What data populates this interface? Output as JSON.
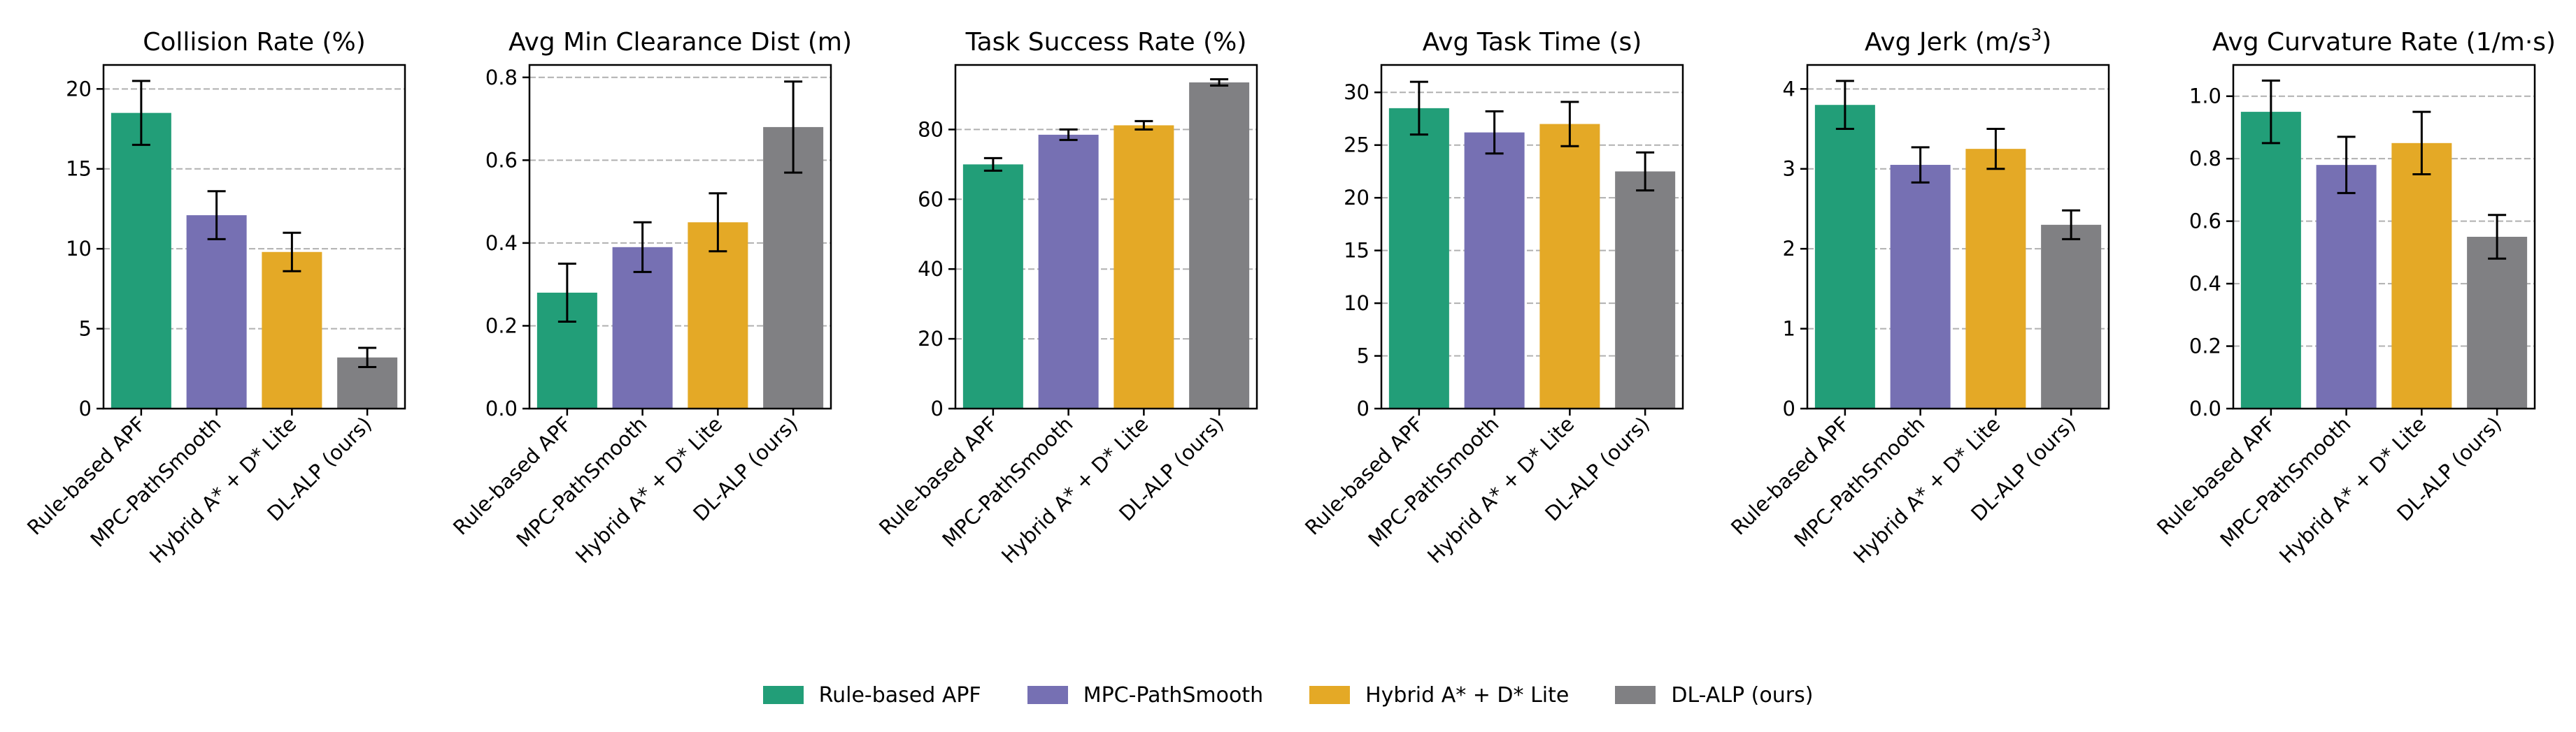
{
  "chart_data": [
    {
      "type": "bar",
      "title": "Collision Rate (%)",
      "categories": [
        "Rule-based APF",
        "MPC-PathSmooth",
        "Hybrid A* + D* Lite",
        "DL-ALP (ours)"
      ],
      "values": [
        18.5,
        12.1,
        9.8,
        3.2
      ],
      "errors": [
        2.0,
        1.5,
        1.2,
        0.6
      ],
      "ylim": [
        0,
        21.5
      ],
      "yticks": [
        0,
        5,
        10,
        15,
        20
      ],
      "ytick_labels": [
        "0",
        "5",
        "10",
        "15",
        "20"
      ],
      "grid": "horizontal dashed"
    },
    {
      "type": "bar",
      "title": "Avg Min Clearance Dist (m)",
      "categories": [
        "Rule-based APF",
        "MPC-PathSmooth",
        "Hybrid A* + D* Lite",
        "DL-ALP (ours)"
      ],
      "values": [
        0.28,
        0.39,
        0.45,
        0.68
      ],
      "errors": [
        0.07,
        0.06,
        0.07,
        0.11
      ],
      "ylim": [
        0,
        0.83
      ],
      "yticks": [
        0,
        0.2,
        0.4,
        0.6,
        0.8
      ],
      "ytick_labels": [
        "0.0",
        "0.2",
        "0.4",
        "0.6",
        "0.8"
      ],
      "grid": "horizontal dashed"
    },
    {
      "type": "bar",
      "title": "Task Success Rate (%)",
      "categories": [
        "Rule-based APF",
        "MPC-PathSmooth",
        "Hybrid A* + D* Lite",
        "DL-ALP (ours)"
      ],
      "values": [
        70,
        78.5,
        81.2,
        93.5
      ],
      "errors": [
        1.8,
        1.5,
        1.2,
        0.9
      ],
      "ylim": [
        0,
        98.5
      ],
      "yticks": [
        0,
        20,
        40,
        60,
        80
      ],
      "ytick_labels": [
        "0",
        "20",
        "40",
        "60",
        "80"
      ],
      "grid": "horizontal dashed"
    },
    {
      "type": "bar",
      "title": "Avg Task Time (s)",
      "categories": [
        "Rule-based APF",
        "MPC-PathSmooth",
        "Hybrid A* + D* Lite",
        "DL-ALP (ours)"
      ],
      "values": [
        28.5,
        26.2,
        27.0,
        22.5
      ],
      "errors": [
        2.5,
        2.0,
        2.1,
        1.8
      ],
      "ylim": [
        0,
        32.6
      ],
      "yticks": [
        0,
        5,
        10,
        15,
        20,
        25,
        30
      ],
      "ytick_labels": [
        "0",
        "5",
        "10",
        "15",
        "20",
        "25",
        "30"
      ],
      "grid": "horizontal dashed"
    },
    {
      "type": "bar",
      "title_prefix": "Avg Jerk (m/s",
      "title_sup": "3",
      "title_suffix": ")",
      "categories": [
        "Rule-based APF",
        "MPC-PathSmooth",
        "Hybrid A* + D* Lite",
        "DL-ALP (ours)"
      ],
      "values": [
        3.8,
        3.05,
        3.25,
        2.3
      ],
      "errors": [
        0.3,
        0.22,
        0.25,
        0.18
      ],
      "ylim": [
        0,
        4.3
      ],
      "yticks": [
        0,
        1,
        2,
        3,
        4
      ],
      "ytick_labels": [
        "0",
        "1",
        "2",
        "3",
        "4"
      ],
      "grid": "horizontal dashed"
    },
    {
      "type": "bar",
      "title": "Avg Curvature Rate (1/m·s)",
      "categories": [
        "Rule-based APF",
        "MPC-PathSmooth",
        "Hybrid A* + D* Lite",
        "DL-ALP (ours)"
      ],
      "values": [
        0.95,
        0.78,
        0.85,
        0.55
      ],
      "errors": [
        0.1,
        0.09,
        0.1,
        0.07
      ],
      "ylim": [
        0,
        1.1
      ],
      "yticks": [
        0,
        0.2,
        0.4,
        0.6,
        0.8,
        1.0
      ],
      "ytick_labels": [
        "0.0",
        "0.2",
        "0.4",
        "0.6",
        "0.8",
        "1.0"
      ],
      "grid": "horizontal dashed"
    }
  ],
  "colors": [
    "#229e78",
    "#7670b3",
    "#e4a926",
    "#808083"
  ],
  "legend": {
    "placement": "bottom-center",
    "items": [
      {
        "label": "Rule-based APF",
        "color": "#229e78"
      },
      {
        "label": "MPC-PathSmooth",
        "color": "#7670b3"
      },
      {
        "label": "Hybrid A* + D* Lite",
        "color": "#e4a926"
      },
      {
        "label": "DL-ALP (ours)",
        "color": "#808083"
      }
    ]
  }
}
